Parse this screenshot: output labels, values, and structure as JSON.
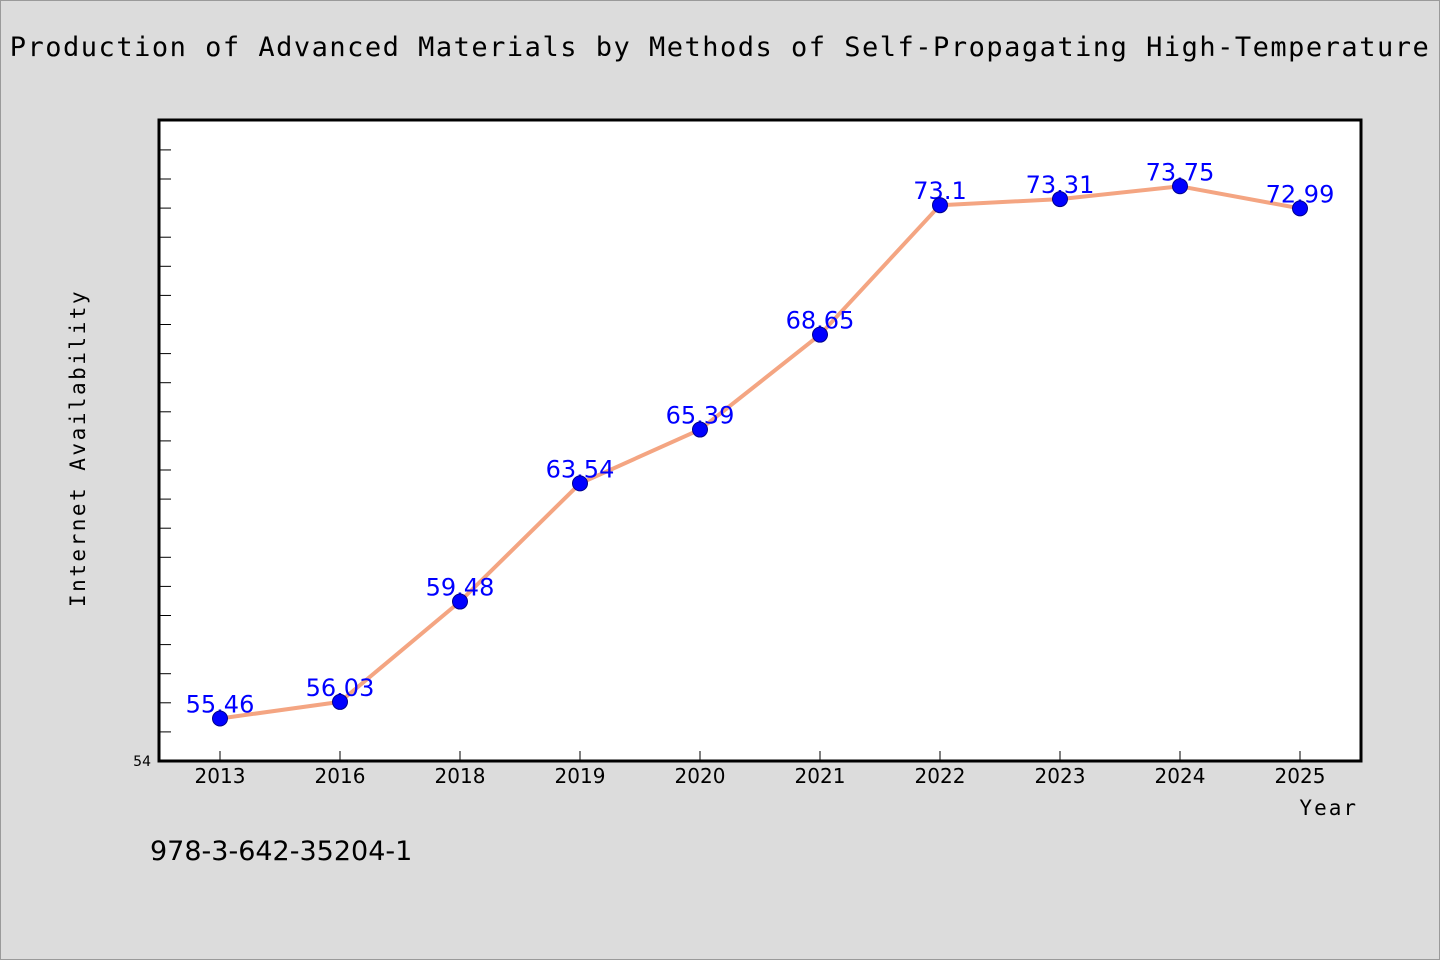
{
  "chart_data": {
    "type": "line",
    "title": "Production of Advanced Materials by Methods of Self-Propagating High-Temperature",
    "xlabel": "Year",
    "ylabel": "Internet Availability",
    "categories": [
      "2013",
      "2016",
      "2018",
      "2019",
      "2020",
      "2021",
      "2022",
      "2023",
      "2024",
      "2025"
    ],
    "values": [
      55.46,
      56.03,
      59.48,
      63.54,
      65.39,
      68.65,
      73.1,
      73.31,
      73.75,
      72.99
    ],
    "data_labels": [
      "55.46",
      "56.03",
      "59.48",
      "63.54",
      "65.39",
      "68.65",
      "73.1",
      "73.31",
      "73.75",
      "72.99"
    ],
    "ylim": [
      54,
      76
    ],
    "y_tick_labels": [
      "54"
    ],
    "grid": false,
    "line_color": "#f4a582",
    "marker_color": "#0000ff",
    "label_color": "#0000ff"
  },
  "footer_text": "978-3-642-35204-1"
}
